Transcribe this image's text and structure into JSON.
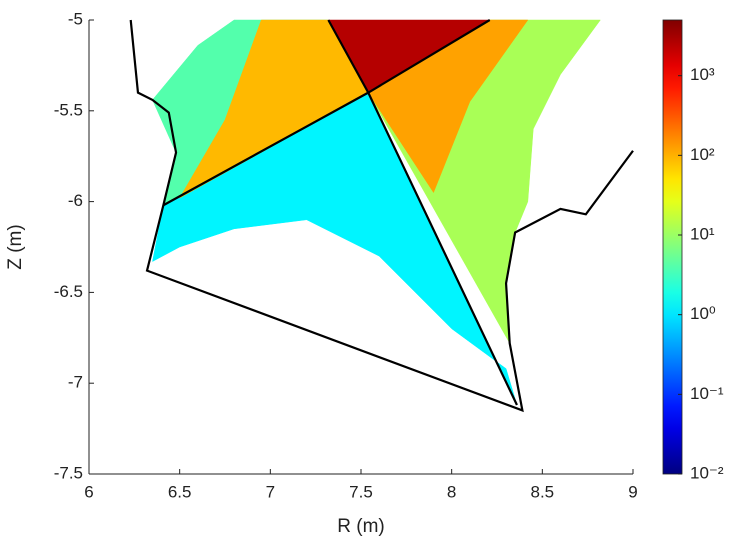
{
  "chart_data": {
    "type": "map",
    "x_label": "R (m)",
    "y_label": "Z (m)",
    "xlim": [
      6,
      9
    ],
    "ylim": [
      -7.5,
      -5
    ],
    "xticks": [
      6,
      6.5,
      7,
      7.5,
      8,
      8.5,
      9
    ],
    "yticks": [
      -7.5,
      -7,
      -6.5,
      -6,
      -5.5,
      -5
    ],
    "color_scale": "log",
    "colormap": "jet",
    "clim": [
      0.01,
      5000
    ],
    "cticks": [
      {
        "value": 0.01,
        "label": "10⁻²"
      },
      {
        "value": 0.1,
        "label": "10⁻¹"
      },
      {
        "value": 1,
        "label": "10⁰"
      },
      {
        "value": 10,
        "label": "10¹"
      },
      {
        "value": 100,
        "label": "10²"
      },
      {
        "value": 1000,
        "label": "10³"
      }
    ],
    "regions": [
      {
        "value": 1.2,
        "points": [
          [
            6.41,
            -6.02
          ],
          [
            7.54,
            -5.4
          ],
          [
            8.36,
            -7.12
          ],
          [
            8.3,
            -6.92
          ],
          [
            8.0,
            -6.7
          ],
          [
            7.6,
            -6.3
          ],
          [
            7.2,
            -6.1
          ],
          [
            6.8,
            -6.15
          ],
          [
            6.5,
            -6.25
          ],
          [
            6.35,
            -6.33
          ]
        ]
      },
      {
        "value": 12,
        "points": [
          [
            8.21,
            -5.0
          ],
          [
            8.82,
            -5.0
          ],
          [
            8.6,
            -5.3
          ],
          [
            8.45,
            -5.6
          ],
          [
            8.42,
            -6.0
          ],
          [
            8.35,
            -6.17
          ],
          [
            8.3,
            -6.45
          ],
          [
            8.32,
            -6.78
          ],
          [
            7.54,
            -5.4
          ]
        ]
      },
      {
        "value": 120,
        "points": [
          [
            7.54,
            -5.4
          ],
          [
            8.21,
            -5.0
          ],
          [
            8.42,
            -5.0
          ],
          [
            8.1,
            -5.45
          ],
          [
            7.9,
            -5.95
          ]
        ]
      },
      {
        "value": 4,
        "points": [
          [
            6.35,
            -5.44
          ],
          [
            6.6,
            -5.14
          ],
          [
            6.8,
            -5.0
          ],
          [
            7.32,
            -5.0
          ],
          [
            7.54,
            -5.4
          ],
          [
            6.41,
            -6.02
          ],
          [
            6.48,
            -5.73
          ]
        ]
      },
      {
        "value": 90,
        "points": [
          [
            6.95,
            -5.0
          ],
          [
            7.32,
            -5.0
          ],
          [
            7.54,
            -5.4
          ],
          [
            6.5,
            -5.98
          ],
          [
            6.75,
            -5.55
          ]
        ]
      },
      {
        "value": 2500,
        "points": [
          [
            7.32,
            -5.0
          ],
          [
            8.21,
            -5.0
          ],
          [
            7.54,
            -5.4
          ]
        ]
      }
    ],
    "lines": [
      {
        "color": "#000000",
        "x": [
          6.23,
          6.27,
          6.35,
          6.44,
          6.48,
          6.41,
          6.32,
          8.39,
          8.32,
          8.3,
          8.35,
          8.6,
          8.74,
          9.0
        ],
        "y": [
          -5.0,
          -5.4,
          -5.44,
          -5.51,
          -5.73,
          -6.02,
          -6.38,
          -7.15,
          -6.78,
          -6.45,
          -6.17,
          -6.04,
          -6.07,
          -5.72
        ]
      },
      {
        "color": "#000000",
        "x": [
          6.41,
          7.54,
          8.21
        ],
        "y": [
          -6.02,
          -5.4,
          -5.0
        ]
      },
      {
        "color": "#000000",
        "x": [
          7.32,
          7.54,
          8.36
        ],
        "y": [
          -5.0,
          -5.4,
          -7.12
        ]
      }
    ]
  }
}
